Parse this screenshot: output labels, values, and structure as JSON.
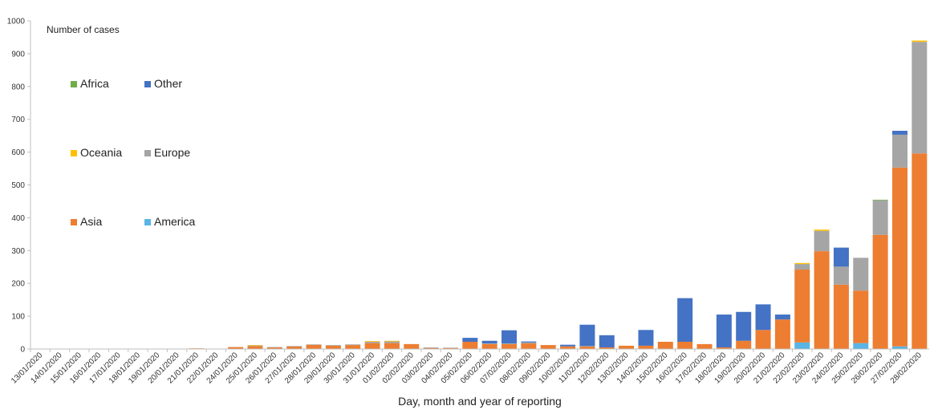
{
  "chart_data": {
    "type": "bar",
    "stacked": true,
    "ylabel": "Number of cases",
    "xlabel": "Day, month and year of reporting",
    "ylim": [
      0,
      1000
    ],
    "yticks": [
      0,
      100,
      200,
      300,
      400,
      500,
      600,
      700,
      800,
      900,
      1000
    ],
    "categories": [
      "13/01/2020",
      "14/01/2020",
      "15/01/2020",
      "16/01/2020",
      "17/01/2020",
      "18/01/2020",
      "19/01/2020",
      "20/01/2020",
      "21/01/2020",
      "22/01/2020",
      "24/01/2020",
      "25/01/2020",
      "26/01/2020",
      "27/01/2020",
      "28/01/2020",
      "29/01/2020",
      "30/01/2020",
      "31/01/2020",
      "01/02/2020",
      "02/02/2020",
      "03/02/2020",
      "04/02/2020",
      "05/02/2020",
      "06/02/2020",
      "07/02/2020",
      "08/02/2020",
      "09/02/2020",
      "10/02/2020",
      "11/02/2020",
      "12/02/2020",
      "13/02/2020",
      "14/02/2020",
      "15/02/2020",
      "16/02/2020",
      "17/02/2020",
      "18/02/2020",
      "19/02/2020",
      "20/02/2020",
      "21/02/2020",
      "22/02/2020",
      "23/02/2020",
      "24/02/2020",
      "25/02/2020",
      "26/02/2020",
      "27/02/2020",
      "28/02/2020"
    ],
    "series": [
      {
        "name": "America",
        "color": "#5ab4e5",
        "values": [
          0,
          0,
          0,
          0,
          0,
          0,
          0,
          0,
          0,
          0,
          0,
          0,
          0,
          0,
          0,
          0,
          0,
          0,
          0,
          0,
          0,
          0,
          0,
          0,
          0,
          0,
          0,
          0,
          0,
          0,
          0,
          0,
          0,
          0,
          0,
          0,
          0,
          0,
          0,
          20,
          0,
          0,
          18,
          0,
          8,
          0
        ]
      },
      {
        "name": "Asia",
        "color": "#ed7d31",
        "values": [
          0,
          0,
          0,
          0,
          0,
          0,
          0,
          0,
          2,
          0,
          6,
          9,
          5,
          8,
          13,
          10,
          12,
          18,
          18,
          15,
          3,
          3,
          22,
          15,
          15,
          17,
          12,
          8,
          8,
          5,
          10,
          10,
          22,
          22,
          15,
          5,
          25,
          58,
          90,
          222,
          298,
          196,
          160,
          348,
          545,
          596
        ]
      },
      {
        "name": "Europe",
        "color": "#a5a5a5",
        "values": [
          0,
          0,
          0,
          0,
          0,
          0,
          0,
          0,
          0,
          0,
          0,
          2,
          1,
          1,
          1,
          2,
          2,
          4,
          5,
          0,
          2,
          1,
          0,
          2,
          2,
          3,
          0,
          0,
          1,
          0,
          0,
          0,
          0,
          0,
          0,
          0,
          0,
          0,
          0,
          17,
          62,
          55,
          100,
          105,
          100,
          340
        ]
      },
      {
        "name": "Other",
        "color": "#4472c4",
        "values": [
          0,
          0,
          0,
          0,
          0,
          0,
          0,
          0,
          0,
          0,
          0,
          0,
          0,
          0,
          0,
          0,
          0,
          0,
          0,
          0,
          0,
          0,
          12,
          8,
          40,
          3,
          0,
          5,
          65,
          37,
          0,
          48,
          0,
          133,
          0,
          100,
          88,
          78,
          15,
          0,
          0,
          58,
          0,
          0,
          12,
          0
        ]
      },
      {
        "name": "Oceania",
        "color": "#ffc000",
        "values": [
          0,
          0,
          0,
          0,
          0,
          0,
          0,
          0,
          0,
          0,
          0,
          1,
          0,
          0,
          0,
          0,
          0,
          2,
          2,
          0,
          0,
          0,
          0,
          0,
          0,
          0,
          0,
          0,
          0,
          0,
          0,
          0,
          0,
          0,
          0,
          0,
          0,
          0,
          0,
          3,
          4,
          0,
          0,
          0,
          0,
          4
        ]
      },
      {
        "name": "Africa",
        "color": "#70ad47",
        "values": [
          0,
          0,
          0,
          0,
          0,
          0,
          0,
          0,
          0,
          0,
          0,
          0,
          0,
          0,
          0,
          0,
          0,
          0,
          0,
          0,
          0,
          0,
          0,
          0,
          0,
          0,
          0,
          0,
          0,
          0,
          0,
          0,
          0,
          0,
          0,
          0,
          0,
          0,
          0,
          0,
          0,
          0,
          0,
          2,
          0,
          0
        ]
      }
    ],
    "legend": [
      {
        "name": "Africa",
        "color": "#70ad47"
      },
      {
        "name": "Other",
        "color": "#4472c4"
      },
      {
        "name": "Oceania",
        "color": "#ffc000"
      },
      {
        "name": "Europe",
        "color": "#a5a5a5"
      },
      {
        "name": "Asia",
        "color": "#ed7d31"
      },
      {
        "name": "America",
        "color": "#5ab4e5"
      }
    ]
  }
}
